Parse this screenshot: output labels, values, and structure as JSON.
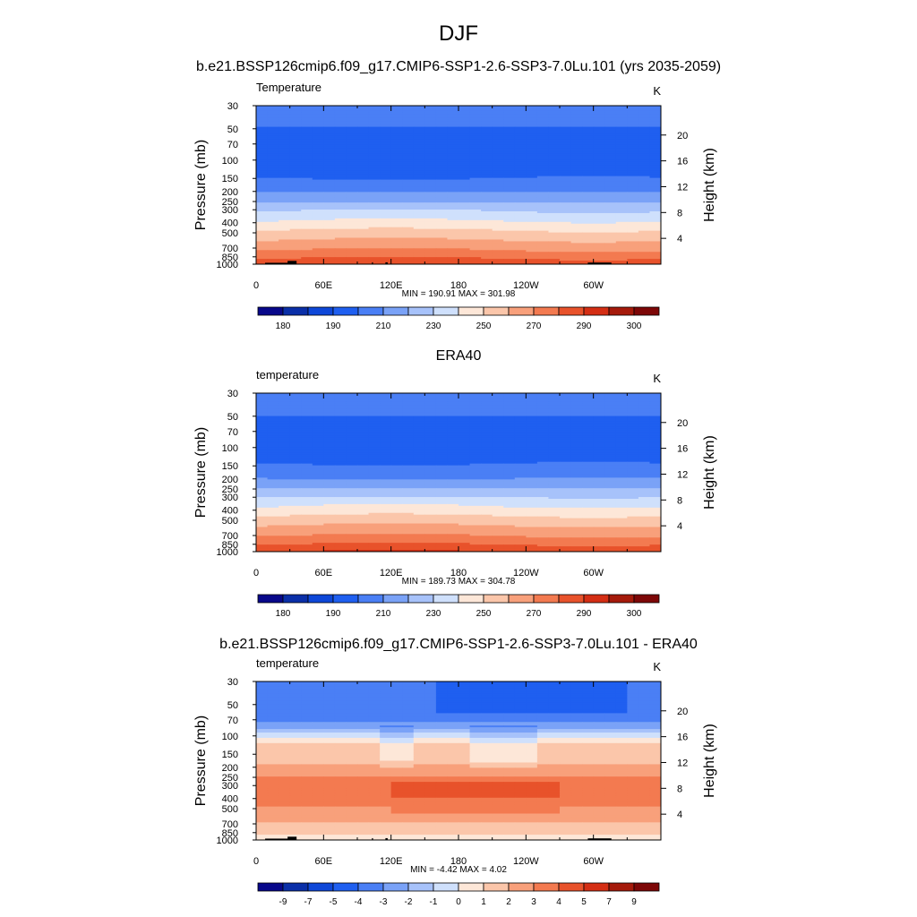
{
  "figure": {
    "title": "DJF",
    "subtitle": "b.e21.BSSP126cmip6.f09_g17.CMIP6-SSP1-2.6-SSP3-7.0Lu.101 (yrs 2035-2059)"
  },
  "colors": {
    "abs_levels": [
      "#08088a",
      "#0a2fa8",
      "#0e47d8",
      "#1f5ff0",
      "#4a7ff5",
      "#7aa2f7",
      "#a7c2fa",
      "#cfe0fc",
      "#fde7d8",
      "#fbc6aa",
      "#f8a07b",
      "#f37a50",
      "#e8522b",
      "#d42e14",
      "#a51a0b",
      "#7d0707"
    ],
    "diff_levels": [
      "#08088a",
      "#0a2fa8",
      "#0e47d8",
      "#1f5ff0",
      "#4a7ff5",
      "#7aa2f7",
      "#a7c2fa",
      "#cfe0fc",
      "#fde7d8",
      "#fbc6aa",
      "#f8a07b",
      "#f37a50",
      "#e8522b",
      "#d42e14",
      "#a51a0b",
      "#7d0707"
    ],
    "land": "#000000"
  },
  "chart_data": [
    {
      "type": "heatmap",
      "panel_title": "",
      "left_label": "Temperature",
      "units": "K",
      "ylabel": "Pressure (mb)",
      "y2label": "Height (km)",
      "x_ticks": [
        "0",
        "60E",
        "120E",
        "180",
        "120W",
        "60W"
      ],
      "x_tick_lon": [
        0,
        60,
        120,
        180,
        240,
        300
      ],
      "xlim": [
        0,
        360
      ],
      "y_ticks": [
        "30",
        "50",
        "70",
        "100",
        "150",
        "200",
        "250",
        "300",
        "400",
        "500",
        "700",
        "850",
        "1000"
      ],
      "y_tick_p": [
        30,
        50,
        70,
        100,
        150,
        200,
        250,
        300,
        400,
        500,
        700,
        850,
        1000
      ],
      "ylim": [
        30,
        1000
      ],
      "height_ticks": [
        "20",
        "16",
        "12",
        "8",
        "4"
      ],
      "height_tick_km": [
        20,
        16,
        12,
        8,
        4
      ],
      "stats": "MIN = 190.91  MAX = 301.98",
      "colorbar_labels": [
        "180",
        "190",
        "210",
        "230",
        "250",
        "270",
        "290",
        "300"
      ],
      "field": {
        "levels_p": [
          30,
          40,
          50,
          60,
          70,
          80,
          100,
          125,
          150,
          175,
          200,
          225,
          250,
          275,
          300,
          350,
          400,
          450,
          500,
          600,
          700,
          775,
          850,
          925,
          1000
        ],
        "profile": [
          205,
          203,
          199,
          197,
          196,
          196,
          196,
          197,
          200,
          205,
          209,
          213,
          218,
          224,
          229,
          236,
          242,
          248,
          253,
          261,
          268,
          273,
          278,
          283,
          287
        ]
      },
      "colorbar_edges": [
        170,
        180,
        185,
        190,
        200,
        210,
        220,
        230,
        240,
        250,
        260,
        270,
        280,
        290,
        295,
        300,
        310
      ]
    },
    {
      "type": "heatmap",
      "panel_title": "ERA40",
      "left_label": "temperature",
      "units": "K",
      "ylabel": "Pressure (mb)",
      "y2label": "Height (km)",
      "x_ticks": [
        "0",
        "60E",
        "120E",
        "180",
        "120W",
        "60W"
      ],
      "x_tick_lon": [
        0,
        60,
        120,
        180,
        240,
        300
      ],
      "xlim": [
        0,
        360
      ],
      "y_ticks": [
        "30",
        "50",
        "70",
        "100",
        "150",
        "200",
        "250",
        "300",
        "400",
        "500",
        "700",
        "850",
        "1000"
      ],
      "y_tick_p": [
        30,
        50,
        70,
        100,
        150,
        200,
        250,
        300,
        400,
        500,
        700,
        850,
        1000
      ],
      "ylim": [
        30,
        1000
      ],
      "height_ticks": [
        "20",
        "16",
        "12",
        "8",
        "4"
      ],
      "height_tick_km": [
        20,
        16,
        12,
        8,
        4
      ],
      "stats": "MIN = 189.73  MAX = 304.78",
      "colorbar_labels": [
        "180",
        "190",
        "210",
        "230",
        "250",
        "270",
        "290",
        "300"
      ],
      "field": {
        "levels_p": [
          30,
          40,
          50,
          60,
          70,
          80,
          100,
          125,
          150,
          175,
          200,
          225,
          250,
          275,
          300,
          350,
          400,
          450,
          500,
          600,
          700,
          775,
          850,
          925,
          1000
        ],
        "profile": [
          207,
          204,
          200,
          197,
          195,
          195,
          195,
          197,
          201,
          206,
          210,
          215,
          220,
          226,
          231,
          238,
          244,
          250,
          255,
          263,
          270,
          275,
          280,
          285,
          290
        ]
      },
      "colorbar_edges": [
        170,
        180,
        185,
        190,
        200,
        210,
        220,
        230,
        240,
        250,
        260,
        270,
        280,
        290,
        295,
        300,
        310
      ]
    },
    {
      "type": "heatmap",
      "panel_title": "b.e21.BSSP126cmip6.f09_g17.CMIP6-SSP1-2.6-SSP3-7.0Lu.101 - ERA40",
      "left_label": "temperature",
      "units": "K",
      "ylabel": "Pressure (mb)",
      "y2label": "Height (km)",
      "x_ticks": [
        "0",
        "60E",
        "120E",
        "180",
        "120W",
        "60W"
      ],
      "x_tick_lon": [
        0,
        60,
        120,
        180,
        240,
        300
      ],
      "xlim": [
        0,
        360
      ],
      "y_ticks": [
        "30",
        "50",
        "70",
        "100",
        "150",
        "200",
        "250",
        "300",
        "400",
        "500",
        "700",
        "850",
        "1000"
      ],
      "y_tick_p": [
        30,
        50,
        70,
        100,
        150,
        200,
        250,
        300,
        400,
        500,
        700,
        850,
        1000
      ],
      "ylim": [
        30,
        1000
      ],
      "height_ticks": [
        "20",
        "16",
        "12",
        "8",
        "4"
      ],
      "height_tick_km": [
        20,
        16,
        12,
        8,
        4
      ],
      "stats": "MIN =  -4.42  MAX =   4.02",
      "colorbar_labels": [
        "-9",
        "-7",
        "-5",
        "-4",
        "-3",
        "-2",
        "-1",
        "0",
        "1",
        "2",
        "3",
        "4",
        "5",
        "7",
        "9"
      ],
      "field": {
        "levels_p": [
          30,
          40,
          50,
          60,
          70,
          80,
          100,
          125,
          150,
          175,
          200,
          225,
          250,
          275,
          300,
          350,
          400,
          450,
          500,
          600,
          700,
          775,
          850,
          925,
          1000
        ],
        "profile": [
          -3.5,
          -3.5,
          -3.5,
          -3.5,
          -3.3,
          -2.5,
          -0.5,
          1.5,
          1.6,
          1.8,
          2.2,
          2.6,
          3.1,
          3.4,
          3.5,
          3.5,
          3.4,
          3.2,
          2.7,
          2.3,
          1.9,
          1.5,
          1.2,
          0.6,
          0.4
        ]
      },
      "colorbar_edges": [
        -11,
        -9,
        -7,
        -5,
        -4,
        -3,
        -2,
        -1,
        0,
        1,
        2,
        3,
        4,
        5,
        7,
        9,
        11
      ]
    }
  ]
}
